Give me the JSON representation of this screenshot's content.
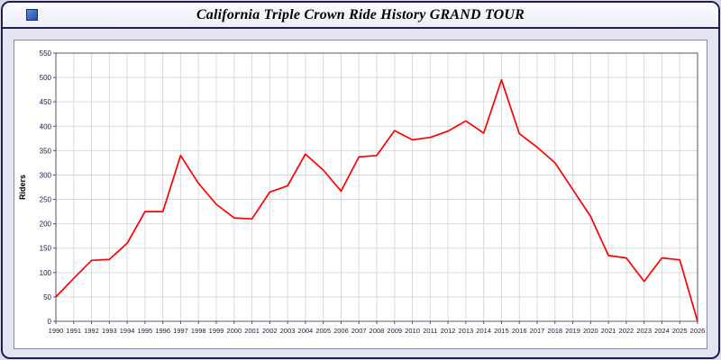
{
  "header": {
    "title": "California Triple Crown Ride History GRAND TOUR",
    "app_icon": "blue-square-app-icon"
  },
  "colors": {
    "line": "#ff0000",
    "grid": "#d9d9d9",
    "plot_border": "#555566",
    "tick_text": "#16164a",
    "window_border": "#1f1f4e",
    "window_bg": "#e4e4f2",
    "panel_bg": "#ffffff"
  },
  "chart_data": {
    "type": "line",
    "title": "California Triple Crown Ride History GRAND TOUR",
    "xlabel": "",
    "ylabel": "Riders",
    "ylim": [
      0,
      550
    ],
    "ytick_step": 50,
    "grid": true,
    "legend": false,
    "x": [
      1990,
      1991,
      1992,
      1993,
      1994,
      1995,
      1996,
      1997,
      1998,
      1999,
      2000,
      2001,
      2002,
      2003,
      2004,
      2005,
      2006,
      2007,
      2008,
      2009,
      2010,
      2011,
      2012,
      2013,
      2014,
      2015,
      2016,
      2017,
      2018,
      2019,
      2020,
      2021,
      2022,
      2023,
      2024,
      2025,
      2026
    ],
    "series": [
      {
        "name": "Riders",
        "color": "#ff0000",
        "values": [
          50,
          88,
          125,
          127,
          160,
          225,
          225,
          340,
          283,
          240,
          212,
          210,
          265,
          278,
          343,
          310,
          267,
          337,
          340,
          391,
          372,
          377,
          390,
          411,
          386,
          495,
          385,
          357,
          325,
          270,
          215,
          135,
          130,
          82,
          130,
          126,
          0
        ]
      }
    ]
  }
}
